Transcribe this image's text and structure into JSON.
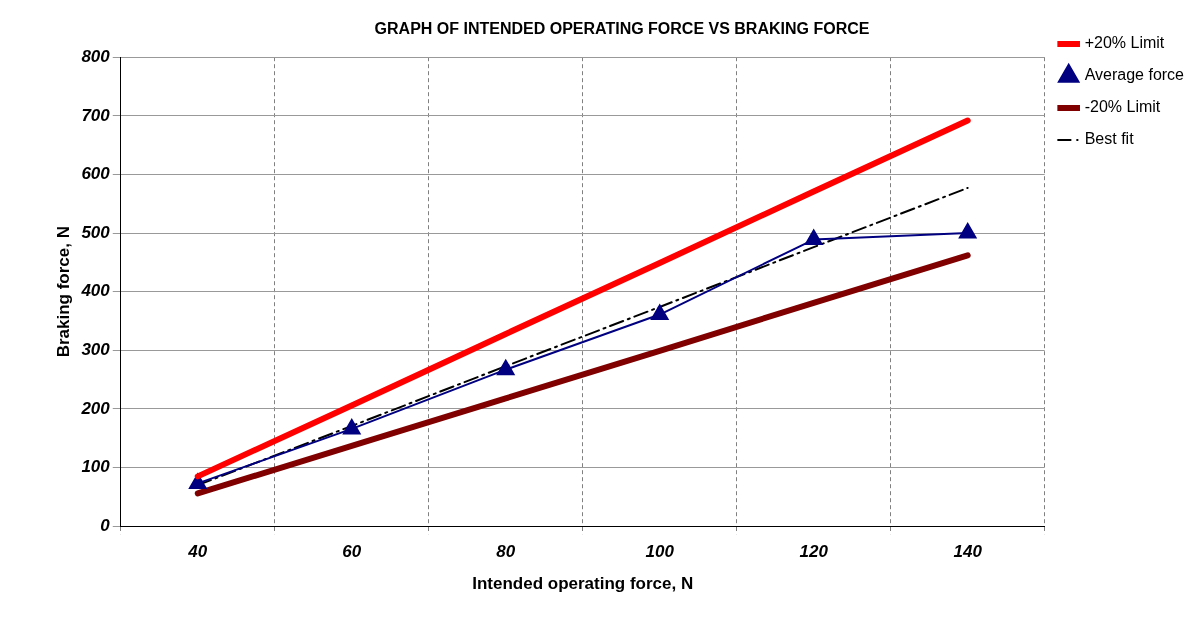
{
  "chart_data": {
    "type": "line",
    "title": "GRAPH OF INTENDED OPERATING FORCE VS BRAKING FORCE",
    "xlabel": "Intended operating force, N",
    "ylabel": "Braking force, N",
    "categories": [
      "40",
      "60",
      "80",
      "100",
      "120",
      "140"
    ],
    "series": [
      {
        "name": "+20% Limit",
        "color": "#ff0000",
        "values": [
          85,
          206,
          328,
          449,
          571,
          692
        ],
        "marker": "none",
        "line_style": "solid"
      },
      {
        "name": "Average force",
        "color": "#000080",
        "values": [
          73,
          166,
          267,
          361,
          489,
          500
        ],
        "marker": "triangle",
        "line_style": "solid"
      },
      {
        "name": "-20% Limit",
        "color": "#800000",
        "values": [
          56,
          137,
          218,
          299,
          381,
          462
        ],
        "marker": "none",
        "line_style": "solid"
      },
      {
        "name": "Best fit",
        "color": "#000000",
        "values": [
          70,
          171,
          273,
          374,
          476,
          577
        ],
        "marker": "none",
        "line_style": "dashed"
      }
    ],
    "ylim": [
      0,
      800
    ],
    "yticks": [
      0,
      100,
      200,
      300,
      400,
      500,
      600,
      700,
      800
    ],
    "grid": true,
    "legend": "right"
  }
}
